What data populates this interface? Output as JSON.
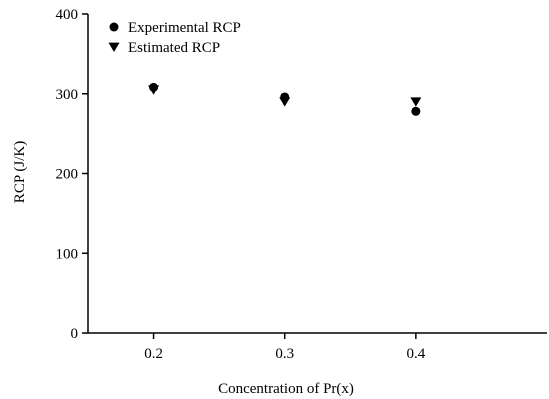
{
  "chart_data": {
    "type": "scatter",
    "xlabel": "Concentration of Pr(x)",
    "ylabel": "RCP (J/K)",
    "xlim": [
      0.15,
      0.5
    ],
    "ylim": [
      0,
      400
    ],
    "xticks": [
      0.2,
      0.3,
      0.4
    ],
    "xtick_labels": [
      "0.2",
      "0.3",
      "0.4"
    ],
    "yticks": [
      0,
      100,
      200,
      300,
      400
    ],
    "ytick_labels": [
      "0",
      "100",
      "200",
      "300",
      "400"
    ],
    "grid": false,
    "legend_placement": "top-left",
    "series": [
      {
        "name": "Experimental RCP",
        "marker": "circle",
        "color": "#000000",
        "x": [
          0.2,
          0.3,
          0.4
        ],
        "y": [
          308,
          296,
          278
        ]
      },
      {
        "name": "Estimated RCP",
        "marker": "triangle-down",
        "color": "#000000",
        "x": [
          0.2,
          0.3,
          0.4
        ],
        "y": [
          305,
          290,
          290
        ]
      }
    ]
  }
}
